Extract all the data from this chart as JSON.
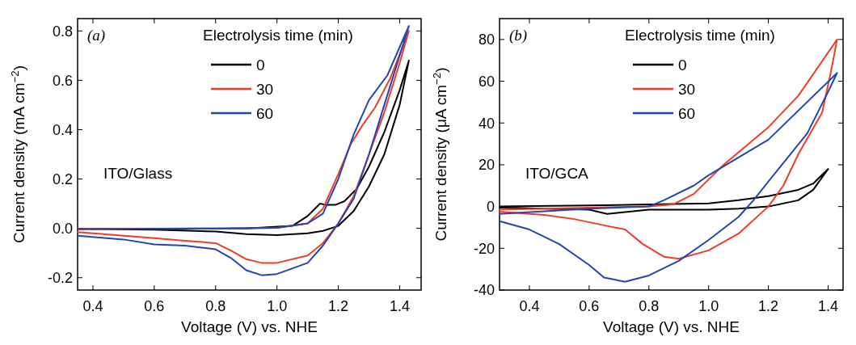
{
  "chart_data": [
    {
      "type": "line",
      "xlabel": "Voltage (V) vs. NHE",
      "ylabel": "Current density (mA cm$^{−2}$)",
      "legend_title": "Electrolysis time (min)",
      "legend": "top right",
      "annotations": [
        "(a)",
        "ITO/Glass"
      ],
      "xlim": [
        0.35,
        1.47
      ],
      "xticks": [
        0.4,
        0.6,
        0.8,
        {
          "value": 1.0,
          "label": "1.0"
        },
        1.2,
        1.4
      ],
      "ylim": [
        -0.25,
        0.85
      ],
      "yticks": [
        -0.2,
        {
          "value": 0,
          "label": "0.0"
        },
        0.2,
        0.4,
        0.6,
        0.8
      ],
      "series": [
        {
          "name": "0",
          "color": "#000000",
          "x": [
            0.35,
            0.6,
            0.9,
            1.05,
            1.1,
            1.14,
            1.16,
            1.19,
            1.22,
            1.26,
            1.3,
            1.35,
            1.4,
            1.43,
            1.4,
            1.35,
            1.3,
            1.25,
            1.2,
            1.15,
            1.1,
            1.0,
            0.9,
            0.8,
            0.6,
            0.35
          ],
          "values": [
            -0.003,
            -0.002,
            0,
            0.01,
            0.05,
            0.1,
            0.095,
            0.095,
            0.11,
            0.16,
            0.25,
            0.39,
            0.56,
            0.68,
            0.5,
            0.3,
            0.17,
            0.07,
            0.01,
            -0.01,
            -0.02,
            -0.027,
            -0.023,
            -0.013,
            -0.005,
            -0.002
          ]
        },
        {
          "name": "30",
          "color": "#f03c23",
          "x": [
            0.35,
            0.8,
            1.0,
            1.1,
            1.15,
            1.2,
            1.24,
            1.28,
            1.32,
            1.37,
            1.43,
            1.4,
            1.35,
            1.3,
            1.25,
            1.2,
            1.15,
            1.1,
            1.0,
            0.95,
            0.9,
            0.85,
            0.8,
            0.7,
            0.6,
            0.45,
            0.35
          ],
          "values": [
            -0.002,
            0,
            0.002,
            0.02,
            0.08,
            0.22,
            0.34,
            0.42,
            0.49,
            0.61,
            0.8,
            0.67,
            0.47,
            0.3,
            0.13,
            0.02,
            -0.06,
            -0.11,
            -0.14,
            -0.14,
            -0.125,
            -0.09,
            -0.06,
            -0.05,
            -0.04,
            -0.025,
            -0.015
          ]
        },
        {
          "name": "60",
          "color": "#2345b4",
          "x": [
            0.35,
            0.8,
            1.0,
            1.1,
            1.15,
            1.2,
            1.25,
            1.3,
            1.36,
            1.43,
            1.4,
            1.35,
            1.3,
            1.25,
            1.2,
            1.15,
            1.1,
            1.0,
            0.95,
            0.9,
            0.85,
            0.8,
            0.7,
            0.6,
            0.5,
            0.35
          ],
          "values": [
            -0.003,
            0,
            0.002,
            0.02,
            0.06,
            0.2,
            0.38,
            0.52,
            0.62,
            0.82,
            0.7,
            0.5,
            0.3,
            0.12,
            0.02,
            -0.07,
            -0.14,
            -0.185,
            -0.19,
            -0.17,
            -0.12,
            -0.085,
            -0.07,
            -0.065,
            -0.045,
            -0.03
          ]
        }
      ]
    },
    {
      "type": "line",
      "xlabel": "Voltage (V) vs. NHE",
      "ylabel": "Current density (μA cm$^{−2}$)",
      "legend_title": "Electrolysis time (min)",
      "legend": "top right",
      "annotations": [
        "(b)",
        "ITO/GCA"
      ],
      "xlim": [
        0.3,
        1.45
      ],
      "xticks": [
        0.4,
        0.6,
        0.8,
        {
          "value": 1.0,
          "label": "1.0"
        },
        1.2,
        1.4
      ],
      "ylim": [
        -40,
        90
      ],
      "yticks": [
        -40,
        -20,
        0,
        20,
        40,
        60,
        80
      ],
      "series": [
        {
          "name": "0",
          "color": "#000000",
          "x": [
            0.3,
            0.6,
            0.8,
            1.0,
            1.1,
            1.2,
            1.3,
            1.35,
            1.4,
            1.35,
            1.3,
            1.2,
            1.1,
            1.0,
            0.8,
            0.7,
            0.66,
            0.6,
            0.3
          ],
          "values": [
            0,
            0.5,
            1,
            1.5,
            3,
            5,
            8,
            11,
            18,
            8,
            3,
            0,
            -1,
            -1.5,
            -1.5,
            -3,
            -3.5,
            -1.5,
            -0.5
          ]
        },
        {
          "name": "30",
          "color": "#f03c23",
          "x": [
            0.3,
            0.6,
            0.8,
            0.88,
            0.95,
            1.05,
            1.2,
            1.3,
            1.43,
            1.41,
            1.38,
            1.3,
            1.25,
            1.2,
            1.1,
            1.0,
            0.9,
            0.85,
            0.78,
            0.72,
            0.65,
            0.55,
            0.45,
            0.3
          ],
          "values": [
            -1.5,
            -0.5,
            0,
            1,
            6,
            20,
            38,
            53,
            80,
            65,
            45,
            25,
            10,
            0,
            -13,
            -21,
            -25,
            -24,
            -18,
            -11,
            -9,
            -6,
            -4,
            -2.5
          ]
        },
        {
          "name": "60",
          "color": "#2345b4",
          "x": [
            0.3,
            0.6,
            0.8,
            0.85,
            0.95,
            1.0,
            1.2,
            1.43,
            1.4,
            1.33,
            1.2,
            1.15,
            1.1,
            1.0,
            0.9,
            0.8,
            0.72,
            0.65,
            0.6,
            0.5,
            0.4,
            0.3
          ],
          "values": [
            -3.5,
            -1,
            0,
            3,
            10,
            15,
            32,
            64,
            55,
            35,
            12,
            3,
            -5,
            -16,
            -26,
            -33,
            -36,
            -34,
            -28,
            -18,
            -11,
            -7
          ]
        }
      ]
    }
  ]
}
